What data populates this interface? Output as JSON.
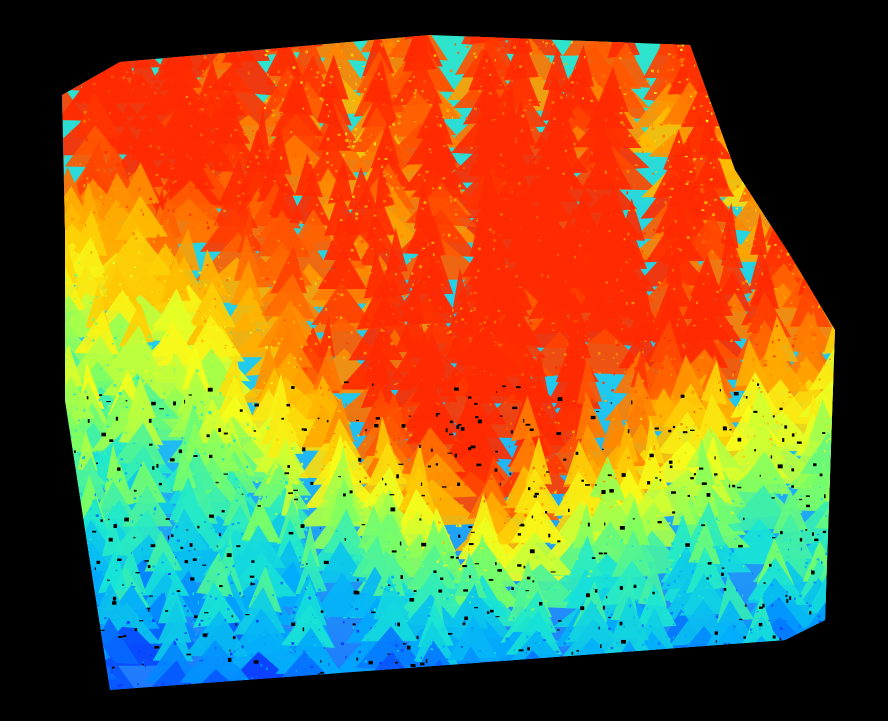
{
  "scene": {
    "background_color": "#000000",
    "subject": "lidar-point-cloud-forest-canopy",
    "colormap": "jet",
    "colormap_stops": [
      "#0a3cff",
      "#00a8ff",
      "#19e6d4",
      "#7dff62",
      "#f7ff1a",
      "#ffc000",
      "#ff7a00",
      "#ff2a00"
    ],
    "ground_color": "#1f6fff",
    "gap_color": "#000000"
  }
}
